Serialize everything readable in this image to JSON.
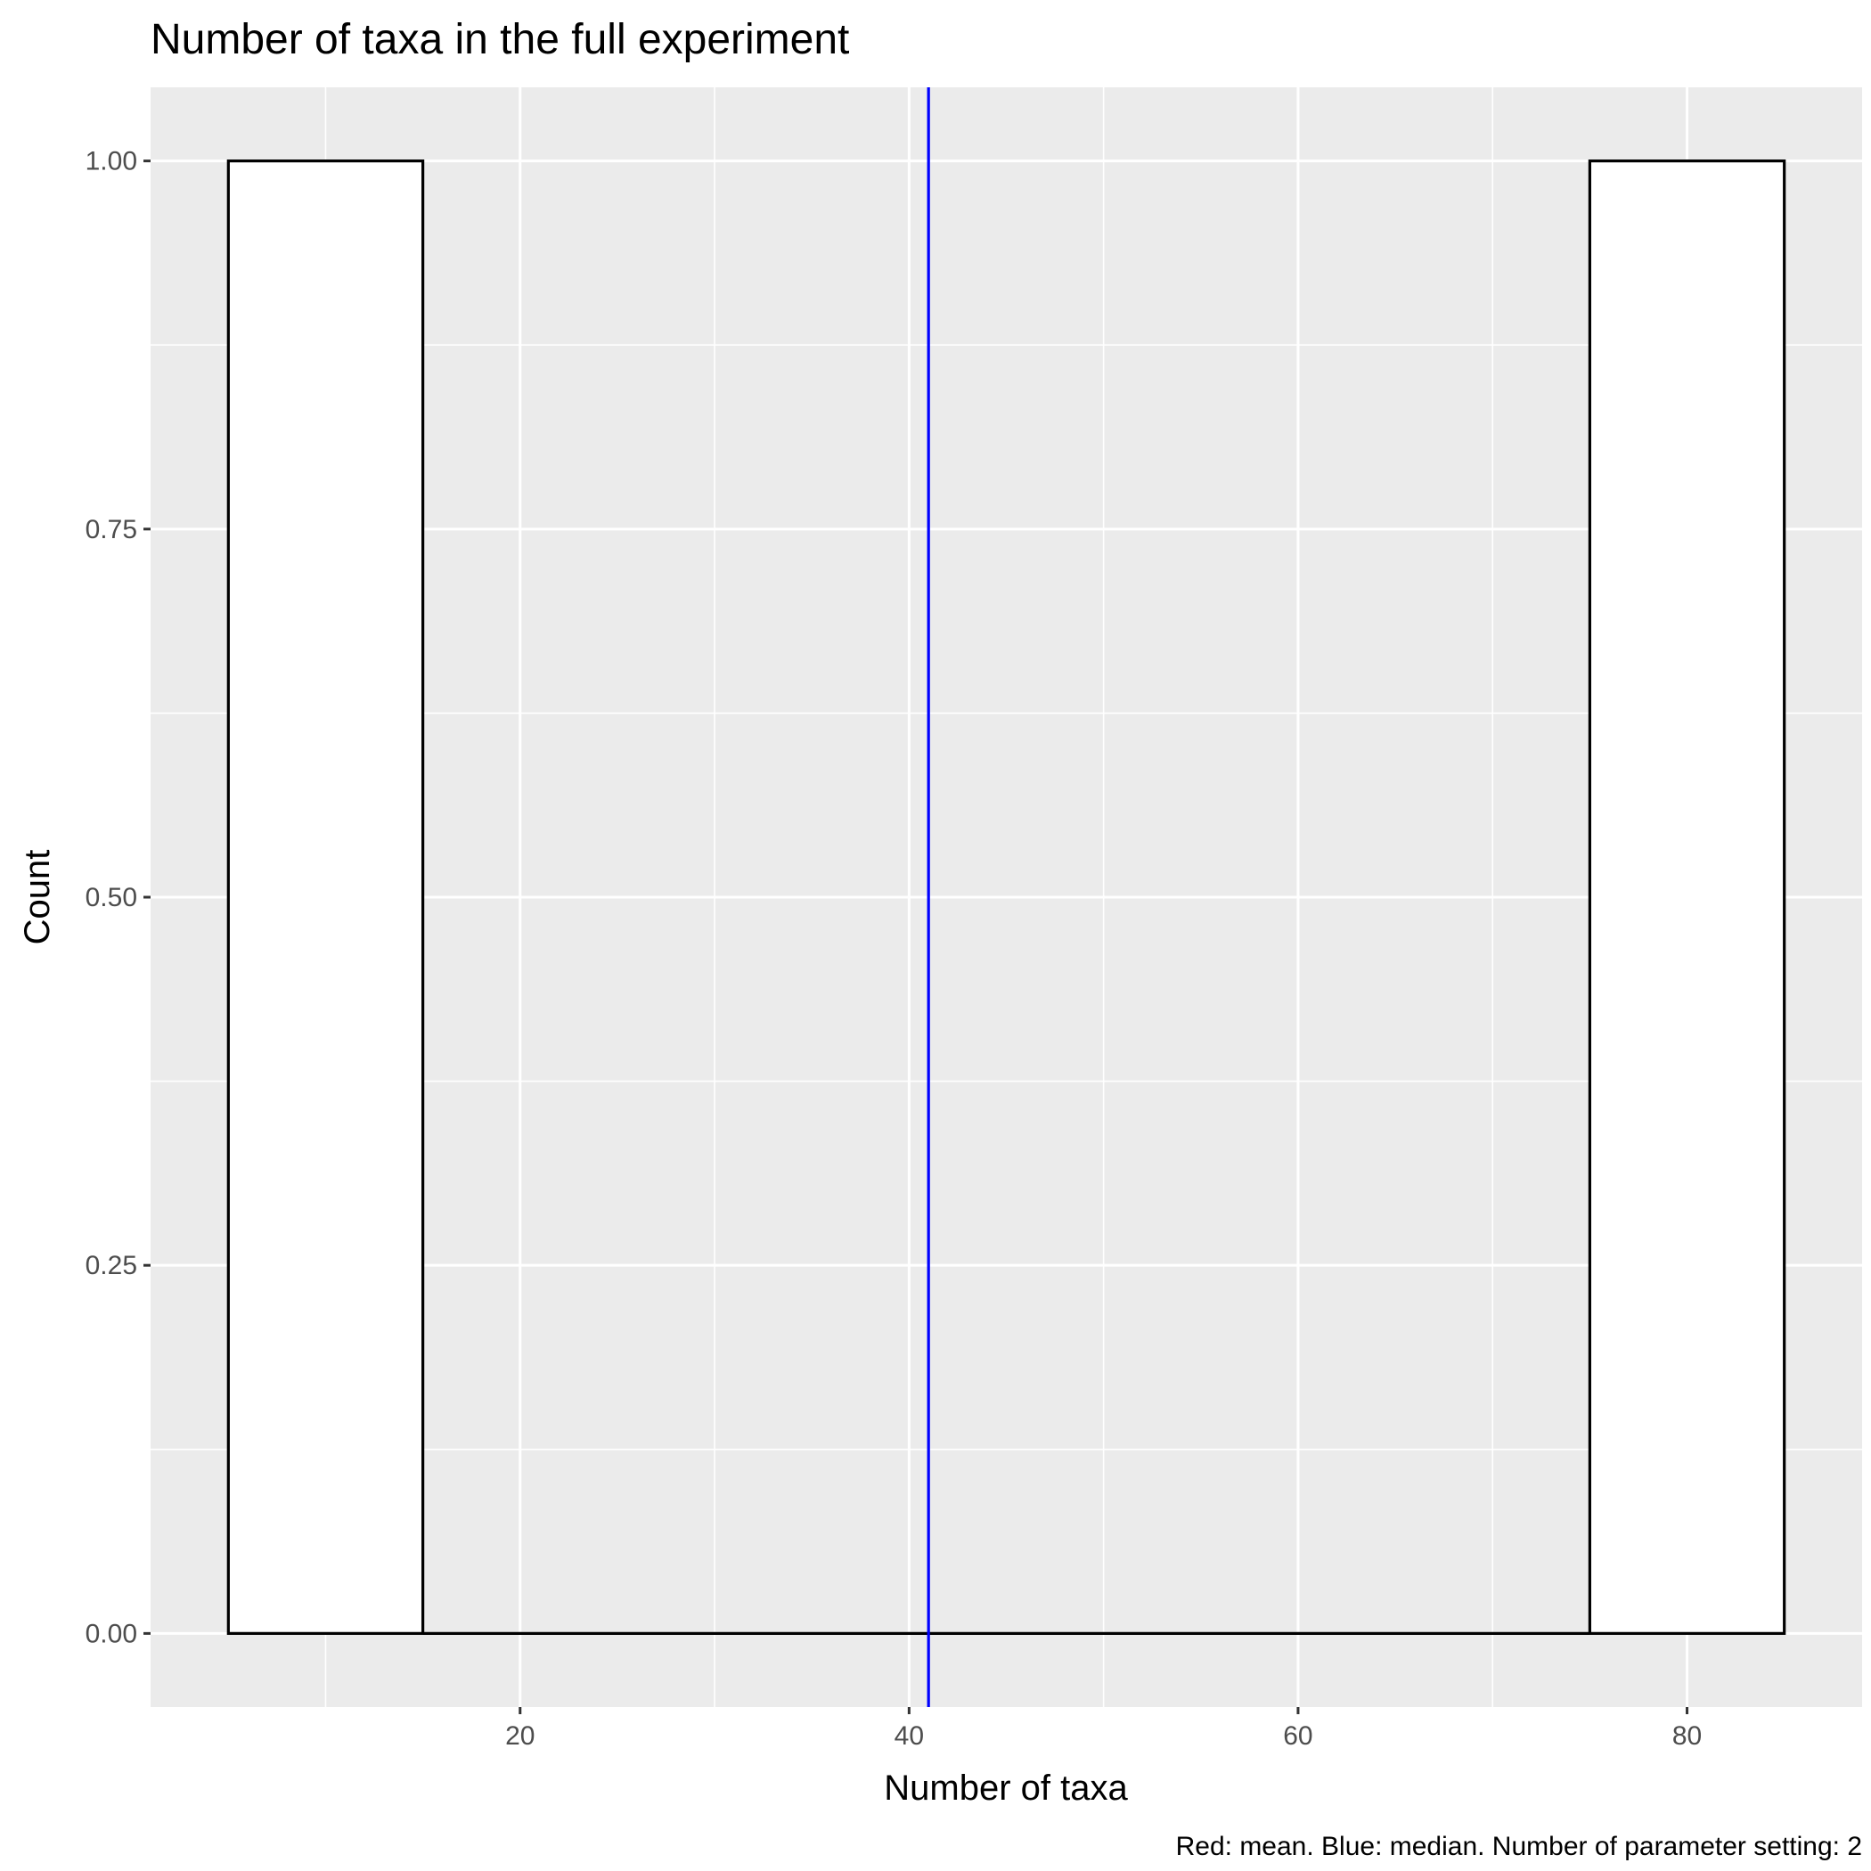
{
  "chart_data": {
    "type": "bar",
    "title": "Number of taxa in the full experiment",
    "xlabel": "Number of taxa",
    "ylabel": "Count",
    "caption": "Red: mean. Blue: median. Number of parameter setting: 2",
    "bins": [
      {
        "x_start": 5,
        "x_end": 15,
        "count": 1
      },
      {
        "x_start": 15,
        "x_end": 75,
        "count": 0
      },
      {
        "x_start": 75,
        "x_end": 85,
        "count": 1
      }
    ],
    "xlim": [
      1,
      89
    ],
    "ylim": [
      -0.05,
      1.05
    ],
    "x_ticks": [
      20,
      40,
      60,
      80
    ],
    "x_tick_labels": [
      "20",
      "40",
      "60",
      "80"
    ],
    "y_ticks": [
      0,
      0.25,
      0.5,
      0.75,
      1.0
    ],
    "y_tick_labels": [
      "0.00",
      "0.25",
      "0.50",
      "0.75",
      "1.00"
    ],
    "reference_lines": [
      {
        "label": "median",
        "x": 41,
        "color": "#0000ff"
      }
    ],
    "grid": true,
    "colors": {
      "panel_background": "#ebebeb",
      "grid": "#ffffff",
      "bar_fill": "#ffffff",
      "bar_outline": "#000000"
    }
  }
}
